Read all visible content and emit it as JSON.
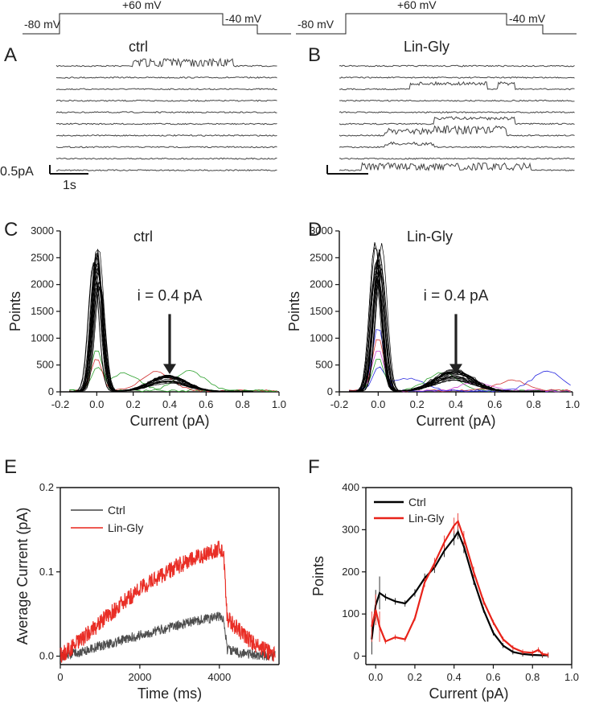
{
  "protocol": {
    "left": {
      "v1": "-80 mV",
      "v2": "+60 mV",
      "v3": "-40 mV"
    },
    "right": {
      "v1": "-80 mV",
      "v2": "+60 mV",
      "v3": "-40 mV"
    }
  },
  "panels": {
    "A": "A",
    "B": "B",
    "C": "C",
    "D": "D",
    "E": "E",
    "F": "F"
  },
  "traces": {
    "ctrl_title": "ctrl",
    "lingly_title": "Lin-Gly",
    "scale_current": "0.5pA",
    "scale_time": "1s",
    "sweeps_A": 10,
    "sweeps_B": 10
  },
  "colors": {
    "ctrl": "#000000",
    "lingly": "#e8231a",
    "green": "#2ca02c",
    "blue": "#2a2ae0",
    "magenta": "#d040d0",
    "red_trace": "#d03030"
  },
  "chart_data": [
    {
      "id": "C",
      "type": "line",
      "title": "ctrl",
      "xlabel": "Current (pA)",
      "ylabel": "Points",
      "xlim": [
        -0.2,
        1.0
      ],
      "ylim": [
        0,
        3000
      ],
      "xticks": [
        "-0.2",
        "0.0",
        "0.2",
        "0.4",
        "0.6",
        "0.8",
        "1.0"
      ],
      "yticks": [
        "0",
        "500",
        "1000",
        "1500",
        "2000",
        "2500",
        "3000"
      ],
      "annotation": "i = 0.4 pA",
      "annotation_x": 0.4,
      "peak_closed": 2700,
      "peak_open": 280
    },
    {
      "id": "D",
      "type": "line",
      "title": "Lin-Gly",
      "xlabel": "Current (pA)",
      "ylabel": "Points",
      "xlim": [
        -0.2,
        1.0
      ],
      "ylim": [
        0,
        3000
      ],
      "xticks": [
        "-0.2",
        "0.0",
        "0.2",
        "0.4",
        "0.6",
        "0.8",
        "1.0"
      ],
      "yticks": [
        "0",
        "500",
        "1000",
        "1500",
        "2000",
        "2500",
        "3000"
      ],
      "annotation": "i = 0.4 pA",
      "annotation_x": 0.4,
      "peak_closed": 2850,
      "peak_open": 380
    },
    {
      "id": "E",
      "type": "line",
      "title": "",
      "xlabel": "Time (ms)",
      "ylabel": "Average Current (pA)",
      "xlim": [
        0,
        5500
      ],
      "ylim": [
        -0.01,
        0.2
      ],
      "xticks": [
        "0",
        "2000",
        "4000"
      ],
      "yticks": [
        "0.0",
        "0.1",
        "0.2"
      ],
      "series": [
        {
          "name": "Ctrl",
          "color": "#444444",
          "x": [
            0,
            500,
            1000,
            1500,
            2000,
            2500,
            3000,
            3500,
            4000,
            4100,
            4200,
            4500,
            5000,
            5500
          ],
          "y": [
            0.0,
            0.005,
            0.012,
            0.018,
            0.025,
            0.031,
            0.037,
            0.043,
            0.047,
            0.045,
            0.008,
            0.004,
            0.001,
            0.0
          ]
        },
        {
          "name": "Lin-Gly",
          "color": "#e8231a",
          "x": [
            0,
            500,
            1000,
            1500,
            2000,
            2500,
            3000,
            3500,
            4000,
            4100,
            4200,
            4500,
            5000,
            5500
          ],
          "y": [
            0.0,
            0.018,
            0.04,
            0.06,
            0.08,
            0.095,
            0.108,
            0.118,
            0.128,
            0.125,
            0.045,
            0.03,
            0.01,
            0.0
          ]
        }
      ]
    },
    {
      "id": "F",
      "type": "line",
      "title": "",
      "xlabel": "Current (pA)",
      "ylabel": "Points",
      "xlim": [
        -0.05,
        1.0
      ],
      "ylim": [
        -20,
        400
      ],
      "xticks": [
        "0.0",
        "0.2",
        "0.4",
        "0.6",
        "0.8",
        "1.0"
      ],
      "yticks": [
        "0",
        "100",
        "200",
        "300",
        "400"
      ],
      "series": [
        {
          "name": "Ctrl",
          "color": "#000000",
          "x": [
            -0.02,
            0.0,
            0.02,
            0.05,
            0.1,
            0.15,
            0.2,
            0.25,
            0.3,
            0.35,
            0.4,
            0.42,
            0.45,
            0.5,
            0.55,
            0.6,
            0.65,
            0.7,
            0.75,
            0.8,
            0.85,
            0.88
          ],
          "y": [
            40,
            120,
            150,
            140,
            130,
            125,
            150,
            185,
            210,
            250,
            280,
            295,
            260,
            180,
            110,
            55,
            25,
            10,
            5,
            3,
            2,
            2
          ]
        },
        {
          "name": "Lin-Gly",
          "color": "#e8231a",
          "x": [
            -0.02,
            0.0,
            0.02,
            0.05,
            0.1,
            0.15,
            0.2,
            0.25,
            0.3,
            0.35,
            0.4,
            0.42,
            0.45,
            0.5,
            0.55,
            0.6,
            0.65,
            0.7,
            0.75,
            0.8,
            0.83,
            0.85,
            0.88
          ],
          "y": [
            70,
            110,
            70,
            35,
            45,
            40,
            90,
            175,
            220,
            270,
            310,
            320,
            280,
            200,
            130,
            80,
            40,
            20,
            10,
            8,
            15,
            5,
            3
          ]
        }
      ]
    }
  ]
}
